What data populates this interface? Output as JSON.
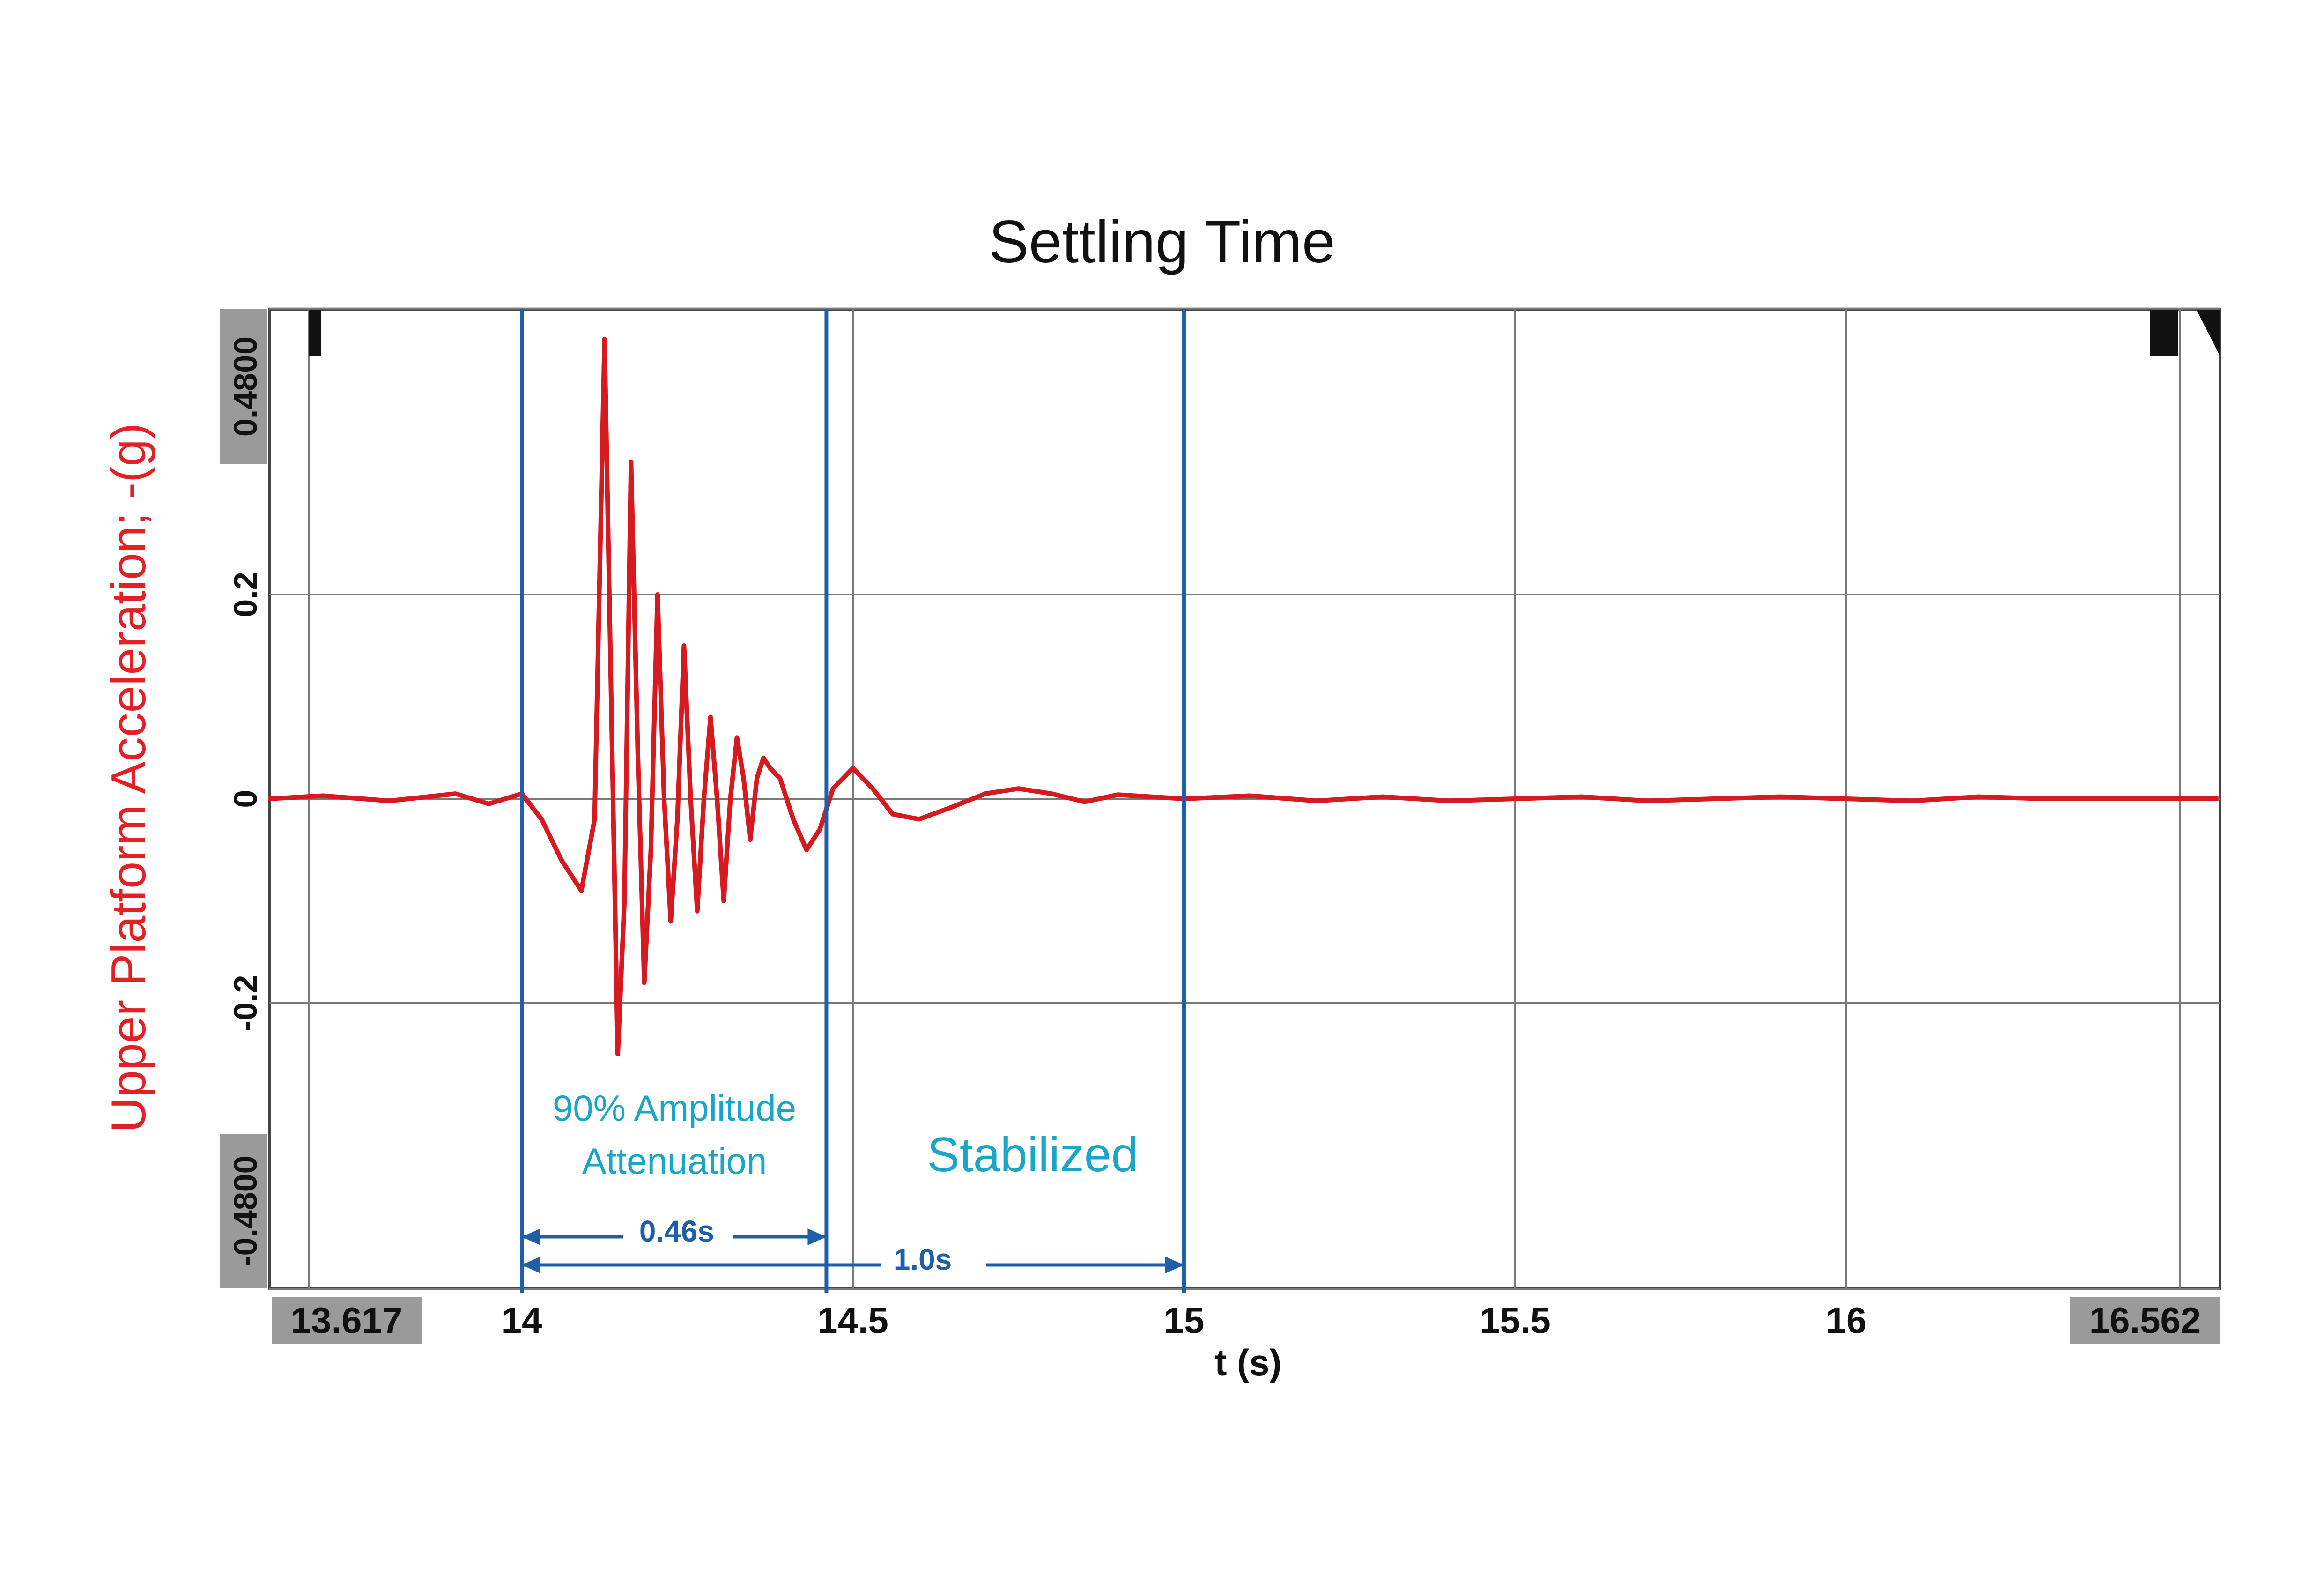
{
  "chart_data": {
    "type": "line",
    "title": "Settling Time",
    "xlabel": "t (s)",
    "ylabel": "Upper Platform Acceleration; -(g)",
    "xlim": [
      13.617,
      16.562
    ],
    "ylim": [
      -0.48,
      0.48
    ],
    "x_ticks": [
      "14",
      "14.5",
      "15",
      "15.5",
      "16"
    ],
    "x_range_labels": [
      "13.617",
      "16.562"
    ],
    "y_ticks": [
      "0.4800",
      "0.2",
      "0",
      "-0.2",
      "-0.4800"
    ],
    "grid": true,
    "series": [
      {
        "color": "#d71920",
        "x": [
          13.617,
          13.7,
          13.8,
          13.9,
          13.95,
          14.0,
          14.03,
          14.06,
          14.09,
          14.11,
          14.125,
          14.135,
          14.145,
          14.155,
          14.165,
          14.175,
          14.185,
          14.195,
          14.205,
          14.215,
          14.225,
          14.235,
          14.245,
          14.255,
          14.265,
          14.275,
          14.285,
          14.295,
          14.305,
          14.315,
          14.325,
          14.335,
          14.345,
          14.355,
          14.365,
          14.375,
          14.39,
          14.41,
          14.43,
          14.45,
          14.47,
          14.5,
          14.53,
          14.56,
          14.6,
          14.65,
          14.7,
          14.75,
          14.8,
          14.85,
          14.9,
          14.95,
          15.0,
          15.1,
          15.2,
          15.3,
          15.4,
          15.5,
          15.6,
          15.7,
          15.8,
          15.9,
          16.0,
          16.1,
          16.2,
          16.3,
          16.4,
          16.5,
          16.562
        ],
        "y": [
          0.0,
          0.003,
          -0.002,
          0.005,
          -0.005,
          0.005,
          -0.02,
          -0.06,
          -0.09,
          -0.02,
          0.45,
          0.1,
          -0.25,
          -0.1,
          0.33,
          0.05,
          -0.18,
          -0.05,
          0.2,
          0.0,
          -0.12,
          -0.02,
          0.15,
          0.0,
          -0.11,
          0.0,
          0.08,
          0.0,
          -0.1,
          0.0,
          0.06,
          0.02,
          -0.04,
          0.02,
          0.04,
          0.03,
          0.02,
          -0.02,
          -0.05,
          -0.03,
          0.01,
          0.03,
          0.01,
          -0.015,
          -0.02,
          -0.008,
          0.005,
          0.01,
          0.005,
          -0.003,
          0.004,
          0.002,
          0.0,
          0.003,
          -0.002,
          0.002,
          -0.002,
          0.0,
          0.002,
          -0.002,
          0.0,
          0.002,
          0.0,
          -0.002,
          0.002,
          0.0,
          0.0,
          0.0,
          0.0
        ]
      }
    ],
    "markers": [
      14.0,
      14.46,
      15.0
    ],
    "annotations": {
      "attenuation_line1": "90% Amplitude",
      "attenuation_line2": "Attenuation",
      "stabilized": "Stabilized",
      "dim_short": "0.46s",
      "dim_long": "1.0s"
    },
    "colors": {
      "series": "#d71920",
      "marker": "#1f5fa8",
      "annotation": "#1aa6c9",
      "ylabel": "#e32026",
      "grid": "#7a7a7a",
      "label_box": "#9a9a9a"
    }
  }
}
